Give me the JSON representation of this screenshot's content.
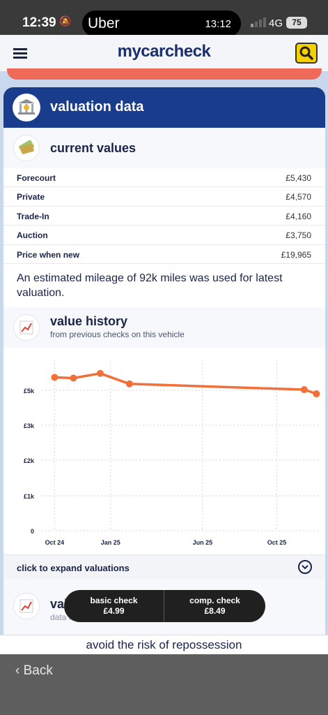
{
  "status_bar": {
    "time": "12:39",
    "dynamic_island_app": "Uber",
    "dynamic_island_time": "13:12",
    "network": "4G",
    "battery": "75"
  },
  "header": {
    "logo": "mycarcheck",
    "menu_icon": "hamburger-icon",
    "search_icon": "search-icon"
  },
  "card": {
    "title": "valuation data",
    "icon": "bank-icon"
  },
  "current_values": {
    "title": "current values",
    "icon": "money-icon",
    "rows": [
      {
        "label": "Forecourt",
        "value": "£5,430"
      },
      {
        "label": "Private",
        "value": "£4,570"
      },
      {
        "label": "Trade-In",
        "value": "£4,160"
      },
      {
        "label": "Auction",
        "value": "£3,750"
      },
      {
        "label": "Price when new",
        "value": "£19,965"
      }
    ],
    "note": "An estimated mileage of 92k miles was used for latest valuation."
  },
  "value_history": {
    "title": "value history",
    "subtitle": "from previous checks on this vehicle",
    "icon": "chart-icon"
  },
  "chart_data": {
    "type": "line",
    "x": [
      "2024-10-01",
      "2024-11-01",
      "2024-12-15",
      "2025-02-01",
      "2025-11-15",
      "2025-12-05"
    ],
    "series": [
      {
        "values": [
          5850,
          5820,
          6000,
          5600,
          5380,
          5220
        ]
      }
    ],
    "x_tick_labels": [
      "Oct 24",
      "Jan 25",
      "Jun 25",
      "Oct 25"
    ],
    "y_tick_labels": [
      "0",
      "£1k",
      "£2k",
      "£3k",
      "£5k"
    ],
    "ylim": [
      0,
      6500
    ],
    "grid": true,
    "color": "#f0703a"
  },
  "expand": {
    "label": "click to expand valuations",
    "icon": "chevron-down-icon"
  },
  "next_section": {
    "title": "value history",
    "subtitle": "data from all matched vehicles"
  },
  "pill": {
    "basic_label": "basic check",
    "basic_price": "£4.99",
    "comp_label": "comp. check",
    "comp_price": "£8.49"
  },
  "promo": "avoid the risk of repossession",
  "bottom": {
    "back_label": "Back"
  },
  "colors": {
    "navy": "#1a3c8c",
    "accent_orange": "#f0703a",
    "search_yellow": "#f6d000"
  }
}
